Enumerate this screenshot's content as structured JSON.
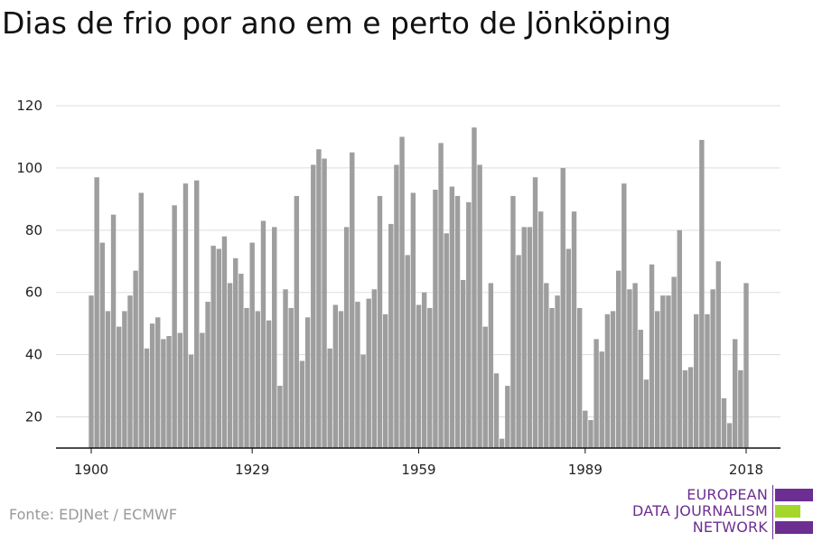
{
  "title": "Dias de frio por ano em e perto de Jönköping",
  "source": "Fonte: EDJNet / ECMWF",
  "logo": {
    "lines": [
      "EUROPEAN",
      "DATA JOURNALISM",
      "NETWORK"
    ],
    "colors": {
      "text": "#6d2e91",
      "purple": "#6d2e91",
      "green": "#a5d62b"
    }
  },
  "colors": {
    "bar": "#9e9e9e",
    "grid": "#dddddd",
    "axis": "#111111",
    "text": "#222222"
  },
  "chart_data": {
    "type": "bar",
    "title": "Dias de frio por ano em e perto de Jönköping",
    "xlabel": "",
    "ylabel": "",
    "ylim": [
      10,
      120
    ],
    "yticks": [
      20,
      40,
      60,
      80,
      100,
      120
    ],
    "xticks": [
      1900,
      1929,
      1959,
      1989,
      2018
    ],
    "grid": true,
    "x": [
      1900,
      1901,
      1902,
      1903,
      1904,
      1905,
      1906,
      1907,
      1908,
      1909,
      1910,
      1911,
      1912,
      1913,
      1914,
      1915,
      1916,
      1917,
      1918,
      1919,
      1920,
      1921,
      1922,
      1923,
      1924,
      1925,
      1926,
      1927,
      1928,
      1929,
      1930,
      1931,
      1932,
      1933,
      1934,
      1935,
      1936,
      1937,
      1938,
      1939,
      1940,
      1941,
      1942,
      1943,
      1944,
      1945,
      1946,
      1947,
      1948,
      1949,
      1950,
      1951,
      1952,
      1953,
      1954,
      1955,
      1956,
      1957,
      1958,
      1959,
      1960,
      1961,
      1962,
      1963,
      1964,
      1965,
      1966,
      1967,
      1968,
      1969,
      1970,
      1971,
      1972,
      1973,
      1974,
      1975,
      1976,
      1977,
      1978,
      1979,
      1980,
      1981,
      1982,
      1983,
      1984,
      1985,
      1986,
      1987,
      1988,
      1989,
      1990,
      1991,
      1992,
      1993,
      1994,
      1995,
      1996,
      1997,
      1998,
      1999,
      2000,
      2001,
      2002,
      2003,
      2004,
      2005,
      2006,
      2007,
      2008,
      2009,
      2010,
      2011,
      2012,
      2013,
      2014,
      2015,
      2016,
      2017,
      2018
    ],
    "values": [
      59,
      97,
      76,
      54,
      85,
      49,
      54,
      59,
      67,
      92,
      42,
      50,
      52,
      45,
      46,
      88,
      47,
      95,
      40,
      96,
      47,
      57,
      75,
      74,
      78,
      63,
      71,
      66,
      55,
      76,
      54,
      83,
      51,
      81,
      30,
      61,
      55,
      91,
      38,
      52,
      101,
      106,
      103,
      42,
      56,
      54,
      81,
      105,
      57,
      40,
      58,
      61,
      91,
      53,
      82,
      101,
      110,
      72,
      92,
      56,
      60,
      55,
      93,
      108,
      79,
      94,
      91,
      64,
      89,
      113,
      101,
      49,
      63,
      34,
      13,
      30,
      91,
      72,
      81,
      81,
      97,
      86,
      63,
      55,
      59,
      100,
      74,
      86,
      55,
      22,
      19,
      45,
      41,
      53,
      54,
      67,
      95,
      61,
      63,
      48,
      32,
      69,
      54,
      59,
      59,
      65,
      80,
      35,
      36,
      53,
      109,
      53,
      61,
      70,
      26,
      18,
      45,
      35,
      63
    ]
  }
}
